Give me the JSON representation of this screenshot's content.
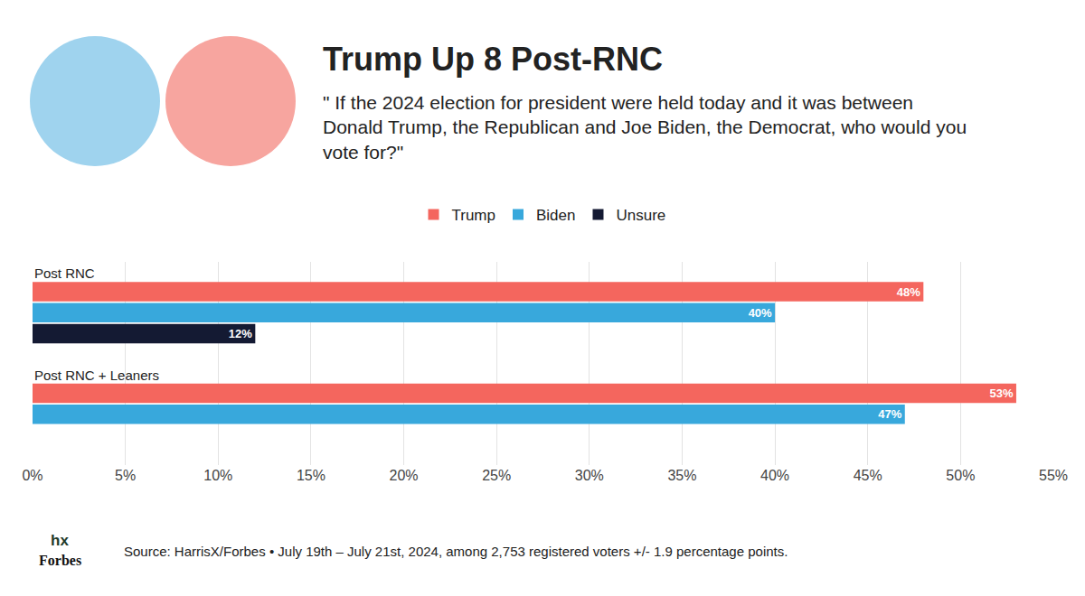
{
  "chart_data": {
    "type": "bar",
    "orientation": "horizontal",
    "title": "Trump Up 8 Post-RNC",
    "subtitle": "\" If the 2024 election for president were held today and it was between Donald Trump, the Republican and Joe Biden, the Democrat, who would you vote for?\"",
    "categories": [
      "Post RNC",
      "Post RNC + Leaners"
    ],
    "series": [
      {
        "name": "Trump",
        "color": "#f4665e",
        "values": [
          48,
          53
        ],
        "value_labels": [
          "48%",
          "53%"
        ]
      },
      {
        "name": "Biden",
        "color": "#38a8dc",
        "values": [
          40,
          47
        ],
        "value_labels": [
          "40%",
          "47%"
        ]
      },
      {
        "name": "Unsure",
        "color": "#141a33",
        "values": [
          12,
          null
        ],
        "value_labels": [
          "12%",
          null
        ]
      }
    ],
    "xlim": [
      0,
      55
    ],
    "xticks": [
      {
        "value": 0,
        "label": "0%"
      },
      {
        "value": 5,
        "label": "5%"
      },
      {
        "value": 10,
        "label": "10%"
      },
      {
        "value": 15,
        "label": "15%"
      },
      {
        "value": 20,
        "label": "20%"
      },
      {
        "value": 25,
        "label": "25%"
      },
      {
        "value": 30,
        "label": "30%"
      },
      {
        "value": 35,
        "label": "35%"
      },
      {
        "value": 40,
        "label": "40%"
      },
      {
        "value": 45,
        "label": "45%"
      },
      {
        "value": 50,
        "label": "50%"
      },
      {
        "value": 55,
        "label": "55%"
      }
    ],
    "grid": true,
    "legend": "top",
    "data_labels": true,
    "tick_labels": "x",
    "source": "Source: HarrisX/Forbes • July 19th – July 21st, 2024, among 2,753 registered voters +/- 1.9 percentage points.",
    "logo": [
      "hx",
      "Forbes"
    ]
  }
}
